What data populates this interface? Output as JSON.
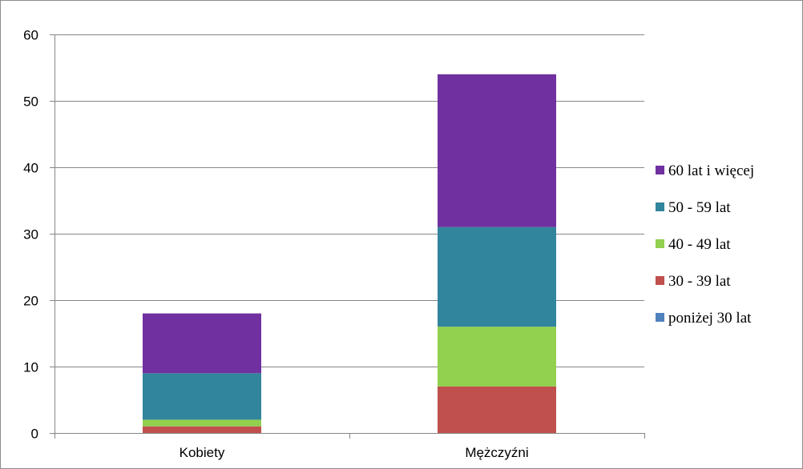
{
  "chart_data": {
    "type": "bar",
    "stacked": true,
    "title": "",
    "xlabel": "",
    "ylabel": "",
    "categories": [
      "Kobiety",
      "Mężczyźni"
    ],
    "ylim": [
      0,
      60
    ],
    "yticks": [
      0,
      10,
      20,
      30,
      40,
      50,
      60
    ],
    "grid": true,
    "legend_position": "right",
    "series": [
      {
        "name": "poniżej 30 lat",
        "color": "#4f81bd",
        "values": [
          0,
          0
        ]
      },
      {
        "name": "30 - 39 lat",
        "color": "#c0504d",
        "values": [
          1,
          7
        ]
      },
      {
        "name": "40 - 49 lat",
        "color": "#92d050",
        "values": [
          1,
          9
        ]
      },
      {
        "name": "50 - 59 lat",
        "color": "#31859c",
        "values": [
          7,
          15
        ]
      },
      {
        "name": "60 lat i więcej",
        "color": "#7030a0",
        "values": [
          9,
          23
        ]
      }
    ]
  }
}
